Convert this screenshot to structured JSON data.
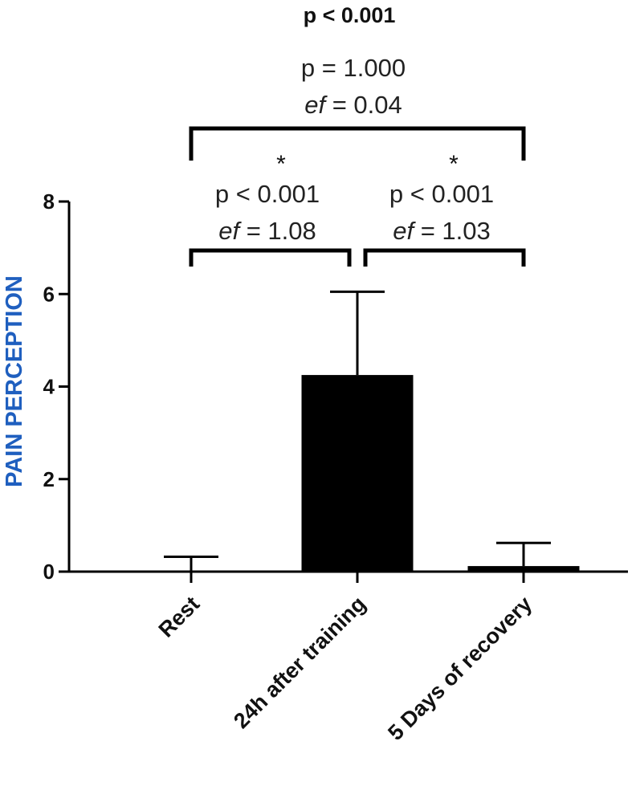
{
  "chart_data": {
    "type": "bar",
    "title": "p < 0.001",
    "ylabel": "PAIN PERCEPTION",
    "ylabel_color": "#1f5fbf",
    "ylim": [
      0,
      8
    ],
    "yticks": [
      "0",
      "2",
      "4",
      "6",
      "8"
    ],
    "ytick_values": [
      0,
      2,
      4,
      6,
      8
    ],
    "categories": [
      "Rest",
      "24h after training",
      "5 Days of recovery"
    ],
    "values": [
      0.0,
      4.25,
      0.12
    ],
    "error_upper": [
      0.32,
      6.05,
      0.62
    ],
    "bar_color": "#000000",
    "comparisons": [
      {
        "from": 0,
        "to": 2,
        "star": "",
        "p_text": "p = 1.000",
        "ef_label": "ef",
        "ef_value": " = 0.04"
      },
      {
        "from": 0,
        "to": 1,
        "star": "*",
        "p_text": "p < 0.001",
        "ef_label": "ef",
        "ef_value": " = 1.08"
      },
      {
        "from": 1,
        "to": 2,
        "star": "*",
        "p_text": "p < 0.001",
        "ef_label": "ef",
        "ef_value": " = 1.03"
      }
    ]
  }
}
